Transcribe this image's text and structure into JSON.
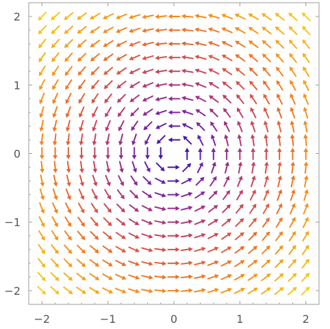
{
  "chart_data": {
    "type": "vector_field",
    "title": "",
    "xlabel": "",
    "ylabel": "",
    "field": {
      "u": "-y",
      "v": "x"
    },
    "xlim": [
      -2.2,
      2.2
    ],
    "ylim": [
      -2.2,
      2.2
    ],
    "grid_step": 0.2,
    "grid_range": [
      -2.0,
      2.0
    ],
    "x_ticks": [
      {
        "value": -2,
        "label": "−2"
      },
      {
        "value": -1,
        "label": "−1"
      },
      {
        "value": 0,
        "label": "0"
      },
      {
        "value": 1,
        "label": "1"
      },
      {
        "value": 2,
        "label": "2"
      }
    ],
    "y_ticks": [
      {
        "value": -2,
        "label": "−2"
      },
      {
        "value": -1,
        "label": "−1"
      },
      {
        "value": 0,
        "label": "0"
      },
      {
        "value": 1,
        "label": "1"
      },
      {
        "value": 2,
        "label": "2"
      }
    ],
    "color_scale": "magnitude",
    "color_stops": [
      "#2a0a9e",
      "#6a1fb0",
      "#a8327f",
      "#d64f4a",
      "#f47a1e",
      "#f7a91a",
      "#f4cf1f"
    ],
    "grid": false
  }
}
